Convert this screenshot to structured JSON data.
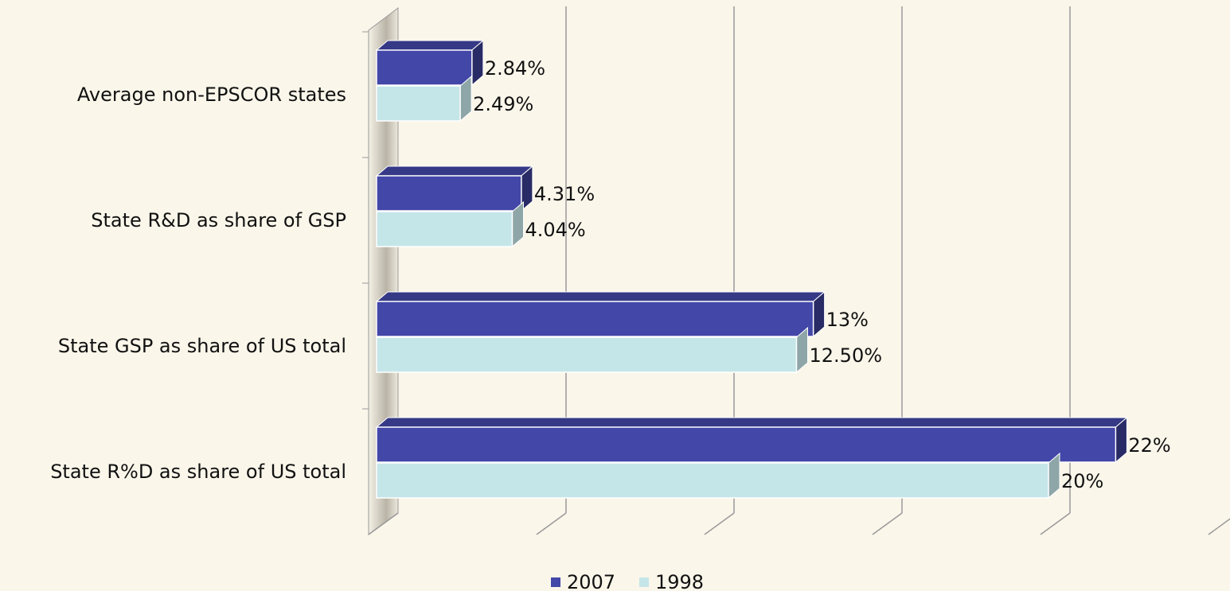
{
  "chart_data": {
    "type": "bar3d_horizontal",
    "categories": [
      "Average non-EPSCOR states",
      "State R&D as share of GSP",
      "State GSP as share of US total",
      "State R%D as share of US total"
    ],
    "series": [
      {
        "name": "2007",
        "color": "#4347a8",
        "values": [
          2.84,
          4.31,
          13,
          22
        ],
        "value_labels": [
          "2.84%",
          "4.31%",
          "13%",
          "22%"
        ]
      },
      {
        "name": "1998",
        "color": "#c5e6e8",
        "values": [
          2.49,
          4.04,
          12.5,
          20
        ],
        "value_labels": [
          "2.49%",
          "4.04%",
          "12.50%",
          "20%"
        ]
      }
    ],
    "xlim": [
      0,
      25
    ],
    "xticks": [
      0,
      5,
      10,
      15,
      20,
      25
    ],
    "grid": true,
    "legend": "bottom"
  }
}
